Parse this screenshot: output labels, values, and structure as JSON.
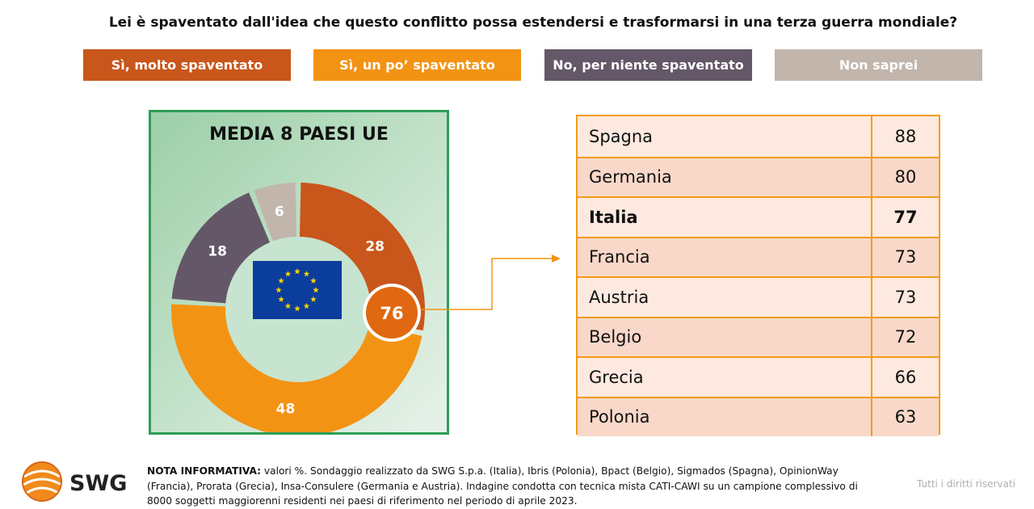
{
  "title": "Lei è spaventato dall'idea che questo conflitto possa estendersi e trasformarsi in una terza guerra mondiale?",
  "legend": [
    {
      "label": "Sì, molto spaventato",
      "color": "#c9561b"
    },
    {
      "label": "Sì, un po’ spaventato",
      "color": "#f39314"
    },
    {
      "label": "No, per niente spaventato",
      "color": "#645868"
    },
    {
      "label": "Non saprei",
      "color": "#c2b5ab"
    }
  ],
  "chart_data": [
    {
      "type": "pie",
      "title": "MEDIA 8 PAESI UE",
      "categories": [
        "Sì, molto spaventato",
        "Sì, un po’ spaventato",
        "No, per niente spaventato",
        "Non saprei"
      ],
      "values": [
        28,
        48,
        18,
        6
      ],
      "colors": [
        "#c9561b",
        "#f39314",
        "#645868",
        "#c2b5ab"
      ],
      "total_label": "76",
      "center_icon": "eu-flag-icon"
    },
    {
      "type": "table",
      "categories": [
        "Spagna",
        "Germania",
        "Italia",
        "Francia",
        "Austria",
        "Belgio",
        "Grecia",
        "Polonia"
      ],
      "values": [
        88,
        80,
        77,
        73,
        73,
        72,
        66,
        63
      ],
      "highlight": "Italia",
      "row_colors": [
        "#fde9df",
        "#f9d8c9"
      ]
    }
  ],
  "note_label": "NOTA INFORMATIVA:",
  "note_text": " valori %. Sondaggio realizzato da SWG S.p.a. (Italia), Ibris (Polonia), Bpact (Belgio), Sigmados (Spagna), OpinionWay (Francia), Prorata (Grecia), Insa-Consulere (Germania e Austria). Indagine condotta con tecnica mista CATI-CAWI su un campione complessivo di 8000 soggetti maggiorenni residenti nei paesi di riferimento nel periodo di aprile 2023.",
  "logo_text": "SWG",
  "rights": "Tutti i diritti riservati"
}
